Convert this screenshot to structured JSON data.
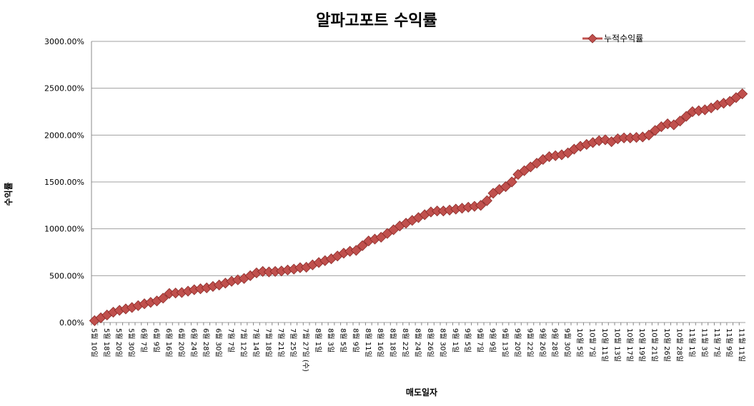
{
  "chart_data": {
    "type": "line",
    "title": "알파고포트 수익률",
    "x_label": "매도일자",
    "y_label": "수익률",
    "categories": [
      "5월 10일",
      null,
      "5월 18일",
      null,
      "5월 20일",
      null,
      "5월 30일",
      null,
      "6월 7일",
      null,
      "6월 9일",
      null,
      "6월 16일",
      null,
      "6월 20일",
      null,
      "6월 24일",
      null,
      "6월 28일",
      null,
      "6월 30일",
      null,
      "7월 7일",
      null,
      "7월 12일",
      null,
      "7월 14일",
      null,
      "7월 18일",
      null,
      "7월 21일",
      null,
      "7월 25일",
      null,
      "7월 27일 (수)",
      null,
      "8월 1일",
      null,
      "8월 3일",
      null,
      "8월 5일",
      null,
      "8월 9일",
      null,
      "8월 11일",
      null,
      "8월 16일",
      null,
      "8월 18일",
      null,
      "8월 22일",
      null,
      "8월 24일",
      null,
      "8월 26일",
      null,
      "8월 30일",
      null,
      "9월 1일",
      null,
      "9월 5일",
      null,
      "9월 7일",
      null,
      "9월 9일",
      null,
      "9월 13일",
      null,
      "9월 20일",
      null,
      "9월 22일",
      null,
      "9월 26일",
      null,
      "9월 28일",
      null,
      "9월 30일",
      null,
      "10월 5일",
      null,
      "10월 7일",
      null,
      "10월 11일",
      null,
      "10월 13일",
      null,
      "10월 17일",
      null,
      "10월 19일",
      null,
      "10월 21일",
      null,
      "10월 26일",
      null,
      "10월 28일",
      null,
      "11월 1일",
      null,
      "11월 3일",
      null,
      "11월 7일",
      null,
      "11월 9일",
      null,
      "11월 11일"
    ],
    "series": [
      {
        "name": "누적수익률",
        "color": "#c0504d",
        "values": [
          20,
          50,
          80,
          110,
          130,
          145,
          160,
          180,
          200,
          215,
          230,
          260,
          310,
          315,
          320,
          335,
          350,
          360,
          370,
          385,
          400,
          420,
          440,
          455,
          470,
          500,
          530,
          545,
          540,
          545,
          550,
          560,
          570,
          585,
          590,
          615,
          640,
          660,
          680,
          710,
          740,
          760,
          770,
          820,
          870,
          890,
          910,
          950,
          990,
          1030,
          1060,
          1090,
          1120,
          1150,
          1180,
          1190,
          1190,
          1200,
          1210,
          1220,
          1230,
          1240,
          1250,
          1300,
          1380,
          1420,
          1450,
          1500,
          1580,
          1620,
          1660,
          1700,
          1740,
          1770,
          1780,
          1790,
          1810,
          1850,
          1880,
          1900,
          1920,
          1940,
          1950,
          1930,
          1960,
          1970,
          1970,
          1975,
          1980,
          2000,
          2050,
          2090,
          2120,
          2110,
          2150,
          2200,
          2250,
          2260,
          2270,
          2290,
          2320,
          2340,
          2360,
          2400,
          2440
        ]
      }
    ],
    "ylim": [
      0,
      3000
    ],
    "yticks": [
      {
        "value": 0,
        "label": "0.00%"
      },
      {
        "value": 500,
        "label": "500.00%"
      },
      {
        "value": 1000,
        "label": "1000.00%"
      },
      {
        "value": 1500,
        "label": "1500.00%"
      },
      {
        "value": 2000,
        "label": "2000.00%"
      },
      {
        "value": 2500,
        "label": "2500.00%"
      },
      {
        "value": 3000,
        "label": "3000.00%"
      }
    ],
    "grid": true,
    "legend": "top-right"
  }
}
